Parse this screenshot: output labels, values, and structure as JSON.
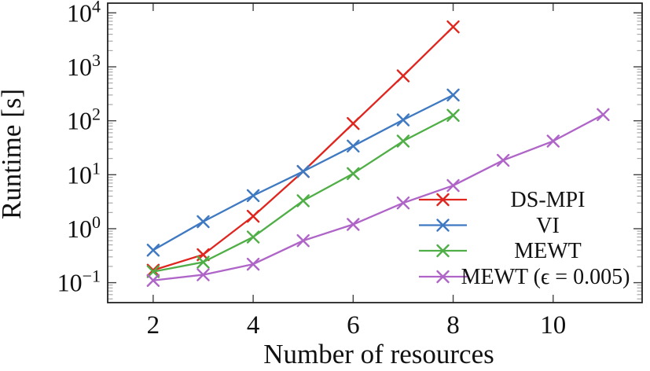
{
  "chart_data": {
    "type": "line",
    "title": "",
    "xlabel": "Number of resources",
    "ylabel": "Runtime [s]",
    "x_scale": "linear",
    "y_scale": "log10",
    "grid": false,
    "legend_position": "inside lower right",
    "xlim": [
      1.09,
      11.78
    ],
    "ylim_log10": [
      -1.37,
      4.18
    ],
    "x_ticks": [
      2,
      4,
      6,
      8,
      10
    ],
    "y_tick_exponents": [
      -1,
      0,
      1,
      2,
      3,
      4
    ],
    "frame_color": "#222222",
    "series": [
      {
        "name": "DS-MPI",
        "color": "#e0251f",
        "marker": "x",
        "x": [
          2,
          3,
          4,
          5,
          6,
          7,
          8
        ],
        "y": [
          0.17,
          0.33,
          1.7,
          11.5,
          89,
          680,
          5500
        ]
      },
      {
        "name": "VI",
        "color": "#3e79c2",
        "marker": "x",
        "x": [
          2,
          3,
          4,
          5,
          6,
          7,
          8
        ],
        "y": [
          0.4,
          1.35,
          4.1,
          11.5,
          34,
          104,
          300
        ]
      },
      {
        "name": "MEWT",
        "color": "#4fae46",
        "marker": "x",
        "x": [
          2,
          3,
          4,
          5,
          6,
          7,
          8
        ],
        "y": [
          0.16,
          0.24,
          0.7,
          3.3,
          10.5,
          42,
          126
        ]
      },
      {
        "name": "MEWT (ϵ = 0.005)",
        "color": "#af64c8",
        "marker": "x",
        "x": [
          2,
          3,
          4,
          5,
          6,
          7,
          8,
          9,
          10,
          11
        ],
        "y": [
          0.11,
          0.14,
          0.22,
          0.6,
          1.2,
          3.0,
          6.3,
          18.5,
          42,
          130
        ]
      }
    ]
  }
}
